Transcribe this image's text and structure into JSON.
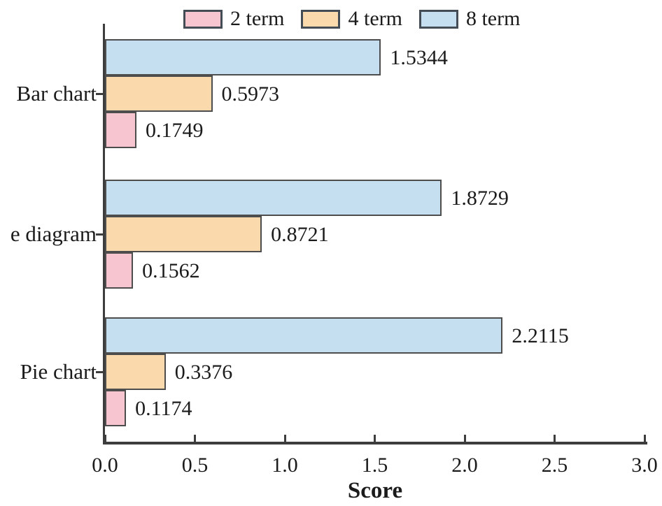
{
  "chart_data": {
    "type": "bar",
    "orientation": "horizontal",
    "xlabel": "Score",
    "categories": [
      "Bar chart",
      "e diagram",
      "Pie chart"
    ],
    "series": [
      {
        "name": "2 term",
        "fill": "#f7c5d0",
        "values": [
          0.1749,
          0.1562,
          0.1174
        ],
        "labels": [
          "0.1749",
          "0.1562",
          "0.1174"
        ]
      },
      {
        "name": "4 term",
        "fill": "#fad9ad",
        "values": [
          0.5973,
          0.8721,
          0.3376
        ],
        "labels": [
          "0.5973",
          "0.8721",
          "0.3376"
        ]
      },
      {
        "name": "8 term",
        "fill": "#c5dff0",
        "values": [
          1.5344,
          1.8729,
          2.2115
        ],
        "labels": [
          "1.5344",
          "1.8729",
          "2.2115"
        ]
      }
    ],
    "xlim": [
      0.0,
      3.0
    ],
    "x_ticks": [
      "0.0",
      "0.5",
      "1.0",
      "1.5",
      "2.0",
      "2.5",
      "3.0"
    ],
    "legend": {
      "position": "top",
      "entries": [
        "2 term",
        "4 term",
        "8 term"
      ]
    },
    "grid": false,
    "bar_edge_color": "#4d4d4d",
    "axis_color": "#3d3d3d",
    "text_color": "#1b1b1b"
  }
}
